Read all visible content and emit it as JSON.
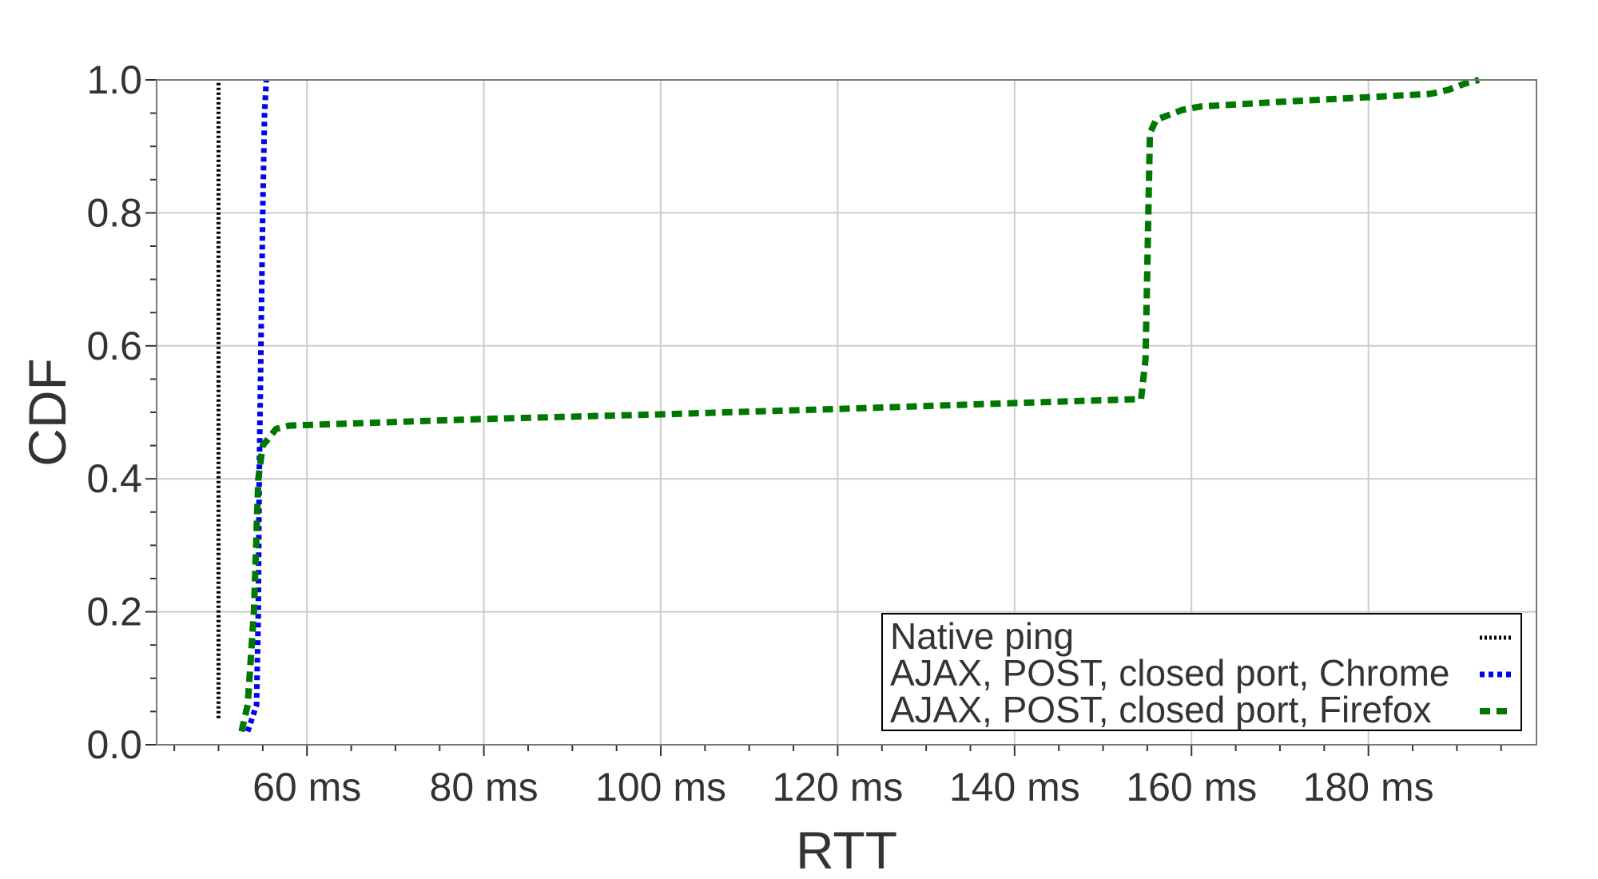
{
  "chart_data": {
    "type": "line",
    "xlabel": "RTT",
    "ylabel": "CDF",
    "xlim": [
      43,
      199
    ],
    "ylim": [
      0,
      1
    ],
    "x_ticks": [
      {
        "value": 60,
        "label": "60 ms"
      },
      {
        "value": 80,
        "label": "80 ms"
      },
      {
        "value": 100,
        "label": "100 ms"
      },
      {
        "value": 120,
        "label": "120 ms"
      },
      {
        "value": 140,
        "label": "140 ms"
      },
      {
        "value": 160,
        "label": "160 ms"
      },
      {
        "value": 180,
        "label": "180 ms"
      }
    ],
    "y_ticks": [
      {
        "value": 0.0,
        "label": "0.0"
      },
      {
        "value": 0.2,
        "label": "0.2"
      },
      {
        "value": 0.4,
        "label": "0.4"
      },
      {
        "value": 0.6,
        "label": "0.6"
      },
      {
        "value": 0.8,
        "label": "0.8"
      },
      {
        "value": 1.0,
        "label": "1.0"
      }
    ],
    "grid": true,
    "legend_position": "bottom-right",
    "series": [
      {
        "name": "Native ping",
        "color": "#000000",
        "dash": "dotted-fine",
        "points": [
          [
            50.0,
            0.04
          ],
          [
            50.0,
            1.0
          ]
        ]
      },
      {
        "name": "AJAX, POST, closed port, Chrome",
        "color": "#0000ee",
        "dash": "dotted",
        "points": [
          [
            53.3,
            0.02
          ],
          [
            54.3,
            0.06
          ],
          [
            54.5,
            0.2
          ],
          [
            54.6,
            0.4
          ],
          [
            54.8,
            0.6
          ],
          [
            55.0,
            0.8
          ],
          [
            55.2,
            0.95
          ],
          [
            55.4,
            1.0
          ]
        ]
      },
      {
        "name": "AJAX, POST, closed port, Firefox",
        "color": "#007700",
        "dash": "dashed",
        "points": [
          [
            52.6,
            0.02
          ],
          [
            53.3,
            0.06
          ],
          [
            54.0,
            0.2
          ],
          [
            54.5,
            0.4
          ],
          [
            55.0,
            0.45
          ],
          [
            56.5,
            0.475
          ],
          [
            58.0,
            0.48
          ],
          [
            80.0,
            0.49
          ],
          [
            100.0,
            0.497
          ],
          [
            120.0,
            0.505
          ],
          [
            140.0,
            0.514
          ],
          [
            154.3,
            0.52
          ],
          [
            154.8,
            0.58
          ],
          [
            155.3,
            0.92
          ],
          [
            156.0,
            0.94
          ],
          [
            159.0,
            0.955
          ],
          [
            161.0,
            0.96
          ],
          [
            170.0,
            0.967
          ],
          [
            180.0,
            0.974
          ],
          [
            187.0,
            0.979
          ],
          [
            189.0,
            0.985
          ],
          [
            191.0,
            0.995
          ],
          [
            192.5,
            1.0
          ]
        ]
      }
    ]
  }
}
